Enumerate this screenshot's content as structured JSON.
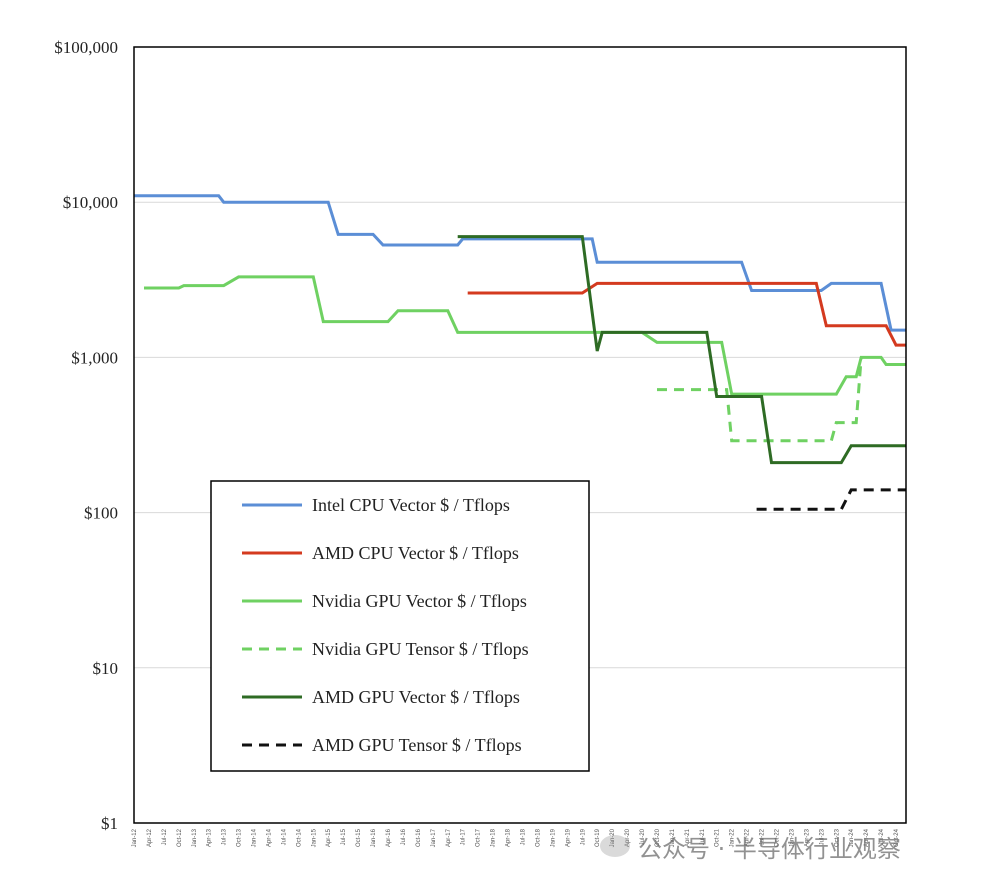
{
  "chart_data": {
    "type": "line",
    "title": "",
    "xlabel": "",
    "ylabel": "",
    "yscale": "log",
    "ylim": [
      1,
      100000
    ],
    "y_ticks": [
      {
        "value": 1,
        "label": "$1"
      },
      {
        "value": 10,
        "label": "$10"
      },
      {
        "value": 100,
        "label": "$100"
      },
      {
        "value": 1000,
        "label": "$1,000"
      },
      {
        "value": 10000,
        "label": "$10,000"
      },
      {
        "value": 100000,
        "label": "$100,000"
      }
    ],
    "x_ticks": [
      "Jan-12",
      "Apr-12",
      "Jul-12",
      "Oct-12",
      "Jan-13",
      "Apr-13",
      "Jul-13",
      "Oct-13",
      "Jan-14",
      "Apr-14",
      "Jul-14",
      "Oct-14",
      "Jan-15",
      "Apr-15",
      "Jul-15",
      "Oct-15",
      "Jan-16",
      "Apr-16",
      "Jul-16",
      "Oct-16",
      "Jan-17",
      "Apr-17",
      "Jul-17",
      "Oct-17",
      "Jan-18",
      "Apr-18",
      "Jul-18",
      "Oct-18",
      "Jan-19",
      "Apr-19",
      "Jul-19",
      "Oct-19",
      "Jan-20",
      "Apr-20",
      "Jul-20",
      "Oct-20",
      "Jan-21",
      "Apr-21",
      "Jul-21",
      "Oct-21",
      "Jan-22",
      "Apr-22",
      "Jul-22",
      "Oct-22",
      "Jan-23",
      "Apr-23",
      "Jul-23",
      "Oct-23",
      "Jan-24",
      "Apr-24",
      "Jul-24",
      "Oct-24"
    ],
    "grid": true,
    "legend_position": "bottom-left",
    "series": [
      {
        "name": "Intel CPU Vector $ / Tflops",
        "color": "#5b8ed6",
        "dash": false,
        "points": [
          [
            "Jan-12",
            11000
          ],
          [
            "Jun-13",
            11000
          ],
          [
            "Jul-13",
            10000
          ],
          [
            "Apr-15",
            10000
          ],
          [
            "Jun-15",
            6200
          ],
          [
            "Jan-16",
            6200
          ],
          [
            "Mar-16",
            5300
          ],
          [
            "Jun-17",
            5300
          ],
          [
            "Jul-17",
            5800
          ],
          [
            "Sep-19",
            5800
          ],
          [
            "Oct-19",
            4100
          ],
          [
            "Mar-22",
            4100
          ],
          [
            "May-22",
            2700
          ],
          [
            "Jul-23",
            2700
          ],
          [
            "Sep-23",
            3000
          ],
          [
            "Jul-24",
            3000
          ],
          [
            "Sep-24",
            1500
          ],
          [
            "Dec-24",
            1500
          ]
        ]
      },
      {
        "name": "AMD CPU Vector $ / Tflops",
        "color": "#d43a1f",
        "dash": false,
        "points": [
          [
            "Aug-17",
            2600
          ],
          [
            "Jul-19",
            2600
          ],
          [
            "Oct-19",
            3000
          ],
          [
            "Jun-23",
            3000
          ],
          [
            "Aug-23",
            1600
          ],
          [
            "Aug-24",
            1600
          ],
          [
            "Oct-24",
            1200
          ],
          [
            "Dec-24",
            1200
          ]
        ]
      },
      {
        "name": "Nvidia GPU Vector $ / Tflops",
        "color": "#6fd162",
        "dash": false,
        "points": [
          [
            "Mar-12",
            2800
          ],
          [
            "Oct-12",
            2800
          ],
          [
            "Nov-12",
            2900
          ],
          [
            "Jul-13",
            2900
          ],
          [
            "Oct-13",
            3300
          ],
          [
            "Jan-15",
            3300
          ],
          [
            "Mar-15",
            1700
          ],
          [
            "Apr-16",
            1700
          ],
          [
            "Jun-16",
            2000
          ],
          [
            "Apr-17",
            2000
          ],
          [
            "Jun-17",
            1450
          ],
          [
            "Jul-20",
            1450
          ],
          [
            "Oct-20",
            1250
          ],
          [
            "Nov-21",
            1250
          ],
          [
            "Jan-22",
            580
          ],
          [
            "Oct-23",
            580
          ],
          [
            "Dec-23",
            750
          ],
          [
            "Feb-24",
            750
          ],
          [
            "Mar-24",
            1000
          ],
          [
            "Jul-24",
            1000
          ],
          [
            "Aug-24",
            900
          ],
          [
            "Dec-24",
            900
          ]
        ]
      },
      {
        "name": "Nvidia  GPU Tensor $ / Tflops",
        "color": "#6fd162",
        "dash": true,
        "points": [
          [
            "Oct-20",
            620
          ],
          [
            "Dec-21",
            620
          ],
          [
            "Jan-22",
            290
          ],
          [
            "Sep-23",
            290
          ],
          [
            "Oct-23",
            380
          ],
          [
            "Feb-24",
            380
          ],
          [
            "Mar-24",
            1000
          ]
        ]
      },
      {
        "name": "AMD GPU Vector $ / Tflops",
        "color": "#2e6b24",
        "dash": false,
        "points": [
          [
            "Jun-17",
            6000
          ],
          [
            "Jul-19",
            6000
          ],
          [
            "Oct-19",
            1100
          ],
          [
            "Nov-19",
            1450
          ],
          [
            "Aug-21",
            1450
          ],
          [
            "Oct-21",
            560
          ],
          [
            "Jul-22",
            560
          ],
          [
            "Sep-22",
            210
          ],
          [
            "Nov-23",
            210
          ],
          [
            "Jan-24",
            270
          ],
          [
            "Dec-24",
            270
          ]
        ]
      },
      {
        "name": "AMD GPU Tensor $ / Tflops",
        "color": "#111111",
        "dash": true,
        "points": [
          [
            "Jun-22",
            105
          ],
          [
            "Nov-23",
            105
          ],
          [
            "Jan-24",
            140
          ],
          [
            "Dec-24",
            140
          ]
        ]
      }
    ]
  },
  "watermark": {
    "text": "公众号 · 半导体行业观察",
    "icon": "wechat-icon"
  }
}
